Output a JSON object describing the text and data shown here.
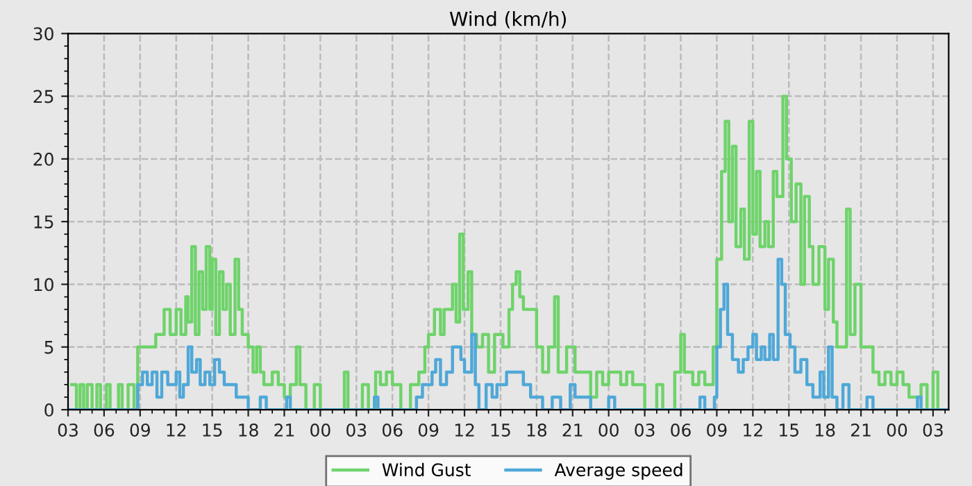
{
  "chart_data": {
    "type": "step",
    "title": "Wind (km/h)",
    "xlim": [
      3,
      76.3
    ],
    "ylim": [
      0,
      30
    ],
    "yticks": [
      0,
      5,
      10,
      15,
      20,
      25,
      30
    ],
    "xticks": [
      {
        "value": 3,
        "label": "03"
      },
      {
        "value": 6,
        "label": "06"
      },
      {
        "value": 9,
        "label": "09"
      },
      {
        "value": 12,
        "label": "12"
      },
      {
        "value": 15,
        "label": "15"
      },
      {
        "value": 18,
        "label": "18"
      },
      {
        "value": 21,
        "label": "21"
      },
      {
        "value": 24,
        "label": "00"
      },
      {
        "value": 27,
        "label": "03"
      },
      {
        "value": 30,
        "label": "06"
      },
      {
        "value": 33,
        "label": "09"
      },
      {
        "value": 36,
        "label": "12"
      },
      {
        "value": 39,
        "label": "15"
      },
      {
        "value": 42,
        "label": "18"
      },
      {
        "value": 45,
        "label": "21"
      },
      {
        "value": 48,
        "label": "00"
      },
      {
        "value": 51,
        "label": "03"
      },
      {
        "value": 54,
        "label": "06"
      },
      {
        "value": 57,
        "label": "09"
      },
      {
        "value": 60,
        "label": "12"
      },
      {
        "value": 63,
        "label": "15"
      },
      {
        "value": 66,
        "label": "18"
      },
      {
        "value": 69,
        "label": "21"
      },
      {
        "value": 72,
        "label": "00"
      },
      {
        "value": 75,
        "label": "03"
      }
    ],
    "grid": true,
    "legend": "bottom",
    "marker": "none",
    "line_style": "solid",
    "series": [
      {
        "name": "Wind Gust",
        "color": "#6fd36b",
        "x": [
          3.3,
          3.7,
          4.0,
          4.3,
          4.6,
          5.0,
          5.4,
          5.7,
          6.2,
          6.5,
          7.2,
          7.5,
          8.0,
          8.5,
          8.8,
          10.3,
          11.0,
          11.5,
          12.0,
          12.4,
          12.8,
          13.0,
          13.3,
          13.6,
          13.9,
          14.2,
          14.5,
          14.8,
          15.0,
          15.3,
          15.6,
          15.9,
          16.2,
          16.5,
          16.9,
          17.2,
          17.5,
          18.0,
          18.4,
          18.7,
          19.0,
          19.3,
          20.0,
          20.5,
          21.0,
          21.5,
          22.0,
          22.3,
          22.8,
          23.5,
          24.0,
          26.0,
          26.3,
          27.5,
          28.0,
          28.6,
          29.0,
          29.5,
          30.0,
          30.7,
          31.5,
          32.2,
          32.7,
          33.0,
          33.5,
          34.0,
          34.3,
          35.0,
          35.3,
          35.6,
          35.9,
          36.3,
          36.6,
          37.0,
          37.5,
          38.0,
          38.5,
          39.2,
          39.7,
          40.0,
          40.3,
          40.6,
          40.9,
          42.0,
          42.5,
          43.0,
          43.5,
          43.8,
          44.5,
          45.2,
          46.5,
          47.0,
          47.5,
          48.0,
          49.0,
          49.5,
          50.0,
          51.0,
          52.0,
          52.5,
          53.5,
          54.0,
          54.3,
          55.0,
          55.5,
          56.0,
          56.7,
          57.0,
          57.4,
          57.7,
          58.0,
          58.3,
          58.6,
          59.0,
          59.3,
          59.7,
          60.0,
          60.3,
          60.6,
          61.0,
          61.3,
          61.7,
          62.0,
          62.5,
          62.8,
          63.2,
          63.6,
          64.0,
          64.3,
          64.7,
          65.0,
          65.5,
          66.0,
          66.3,
          66.7,
          67.0,
          67.8,
          68.1,
          68.5,
          69.0,
          70.0,
          70.5,
          71.0,
          71.5,
          72.0,
          72.5,
          73.0,
          74.0,
          74.5,
          75.0,
          75.4,
          76.3
        ],
        "values": [
          2,
          0,
          2,
          0,
          2,
          0,
          2,
          0,
          2,
          0,
          2,
          0,
          2,
          0,
          5,
          6,
          8,
          6,
          8,
          6,
          9,
          7,
          13,
          6,
          11,
          8,
          13,
          8,
          12,
          6,
          11,
          8,
          10,
          6,
          12,
          8,
          6,
          5,
          3,
          5,
          3,
          2,
          3,
          2,
          1,
          2,
          5,
          2,
          0,
          2,
          0,
          3,
          0,
          2,
          0,
          3,
          2,
          3,
          2,
          0,
          2,
          3,
          5,
          6,
          8,
          6,
          8,
          10,
          7,
          14,
          8,
          11,
          6,
          5,
          6,
          3,
          6,
          5,
          8,
          10,
          11,
          9,
          8,
          5,
          3,
          5,
          9,
          3,
          5,
          3,
          1,
          3,
          2,
          3,
          2,
          3,
          2,
          0,
          2,
          0,
          3,
          6,
          3,
          2,
          3,
          2,
          5,
          12,
          19,
          23,
          15,
          21,
          13,
          16,
          12,
          23,
          14,
          19,
          13,
          15,
          13,
          19,
          17,
          25,
          20,
          15,
          18,
          10,
          17,
          13,
          10,
          13,
          8,
          12,
          7,
          5,
          16,
          6,
          10,
          5,
          3,
          2,
          3,
          2,
          3,
          2,
          1,
          2,
          0,
          3,
          0,
          0
        ]
      },
      {
        "name": "Average speed",
        "color": "#4fa8d8",
        "x": [
          3,
          8.8,
          9.2,
          9.6,
          10.0,
          10.4,
          10.8,
          11.3,
          12.0,
          12.3,
          12.6,
          13.0,
          13.3,
          13.7,
          14.0,
          14.4,
          14.8,
          15.2,
          15.6,
          16.0,
          17.0,
          18.0,
          19.0,
          19.5,
          21.2,
          21.5,
          28.5,
          28.8,
          32.0,
          32.5,
          33.3,
          33.6,
          34.0,
          34.5,
          35.0,
          35.7,
          36.0,
          36.6,
          36.9,
          37.2,
          37.8,
          38.3,
          38.7,
          39.5,
          40.9,
          41.5,
          42.5,
          43.3,
          44.0,
          44.8,
          45.2,
          46.5,
          48.0,
          48.5,
          55.6,
          56.0,
          56.8,
          57.0,
          57.3,
          57.6,
          57.9,
          58.3,
          58.8,
          59.2,
          59.6,
          60.0,
          60.3,
          60.7,
          61.0,
          61.4,
          61.7,
          62.1,
          62.4,
          62.7,
          63.1,
          63.5,
          64.0,
          64.5,
          65.0,
          65.6,
          65.9,
          66.3,
          66.6,
          67.0,
          67.5,
          68.0,
          69.5,
          70.0,
          73.7,
          74.0,
          76.3
        ],
        "values": [
          0,
          2,
          3,
          2,
          3,
          1,
          3,
          2,
          3,
          1,
          2,
          5,
          3,
          4,
          2,
          3,
          2,
          4,
          3,
          2,
          1,
          0,
          1,
          0,
          1,
          0,
          1,
          0,
          1,
          2,
          3,
          4,
          2,
          3,
          5,
          4,
          3,
          6,
          2,
          0,
          2,
          1,
          2,
          3,
          2,
          1,
          0,
          1,
          0,
          2,
          1,
          0,
          1,
          0,
          1,
          0,
          1,
          5,
          8,
          10,
          6,
          4,
          3,
          4,
          5,
          6,
          4,
          5,
          4,
          6,
          4,
          12,
          10,
          6,
          5,
          3,
          4,
          2,
          1,
          3,
          1,
          5,
          1,
          0,
          2,
          0,
          1,
          0,
          1,
          0,
          0
        ]
      }
    ]
  }
}
